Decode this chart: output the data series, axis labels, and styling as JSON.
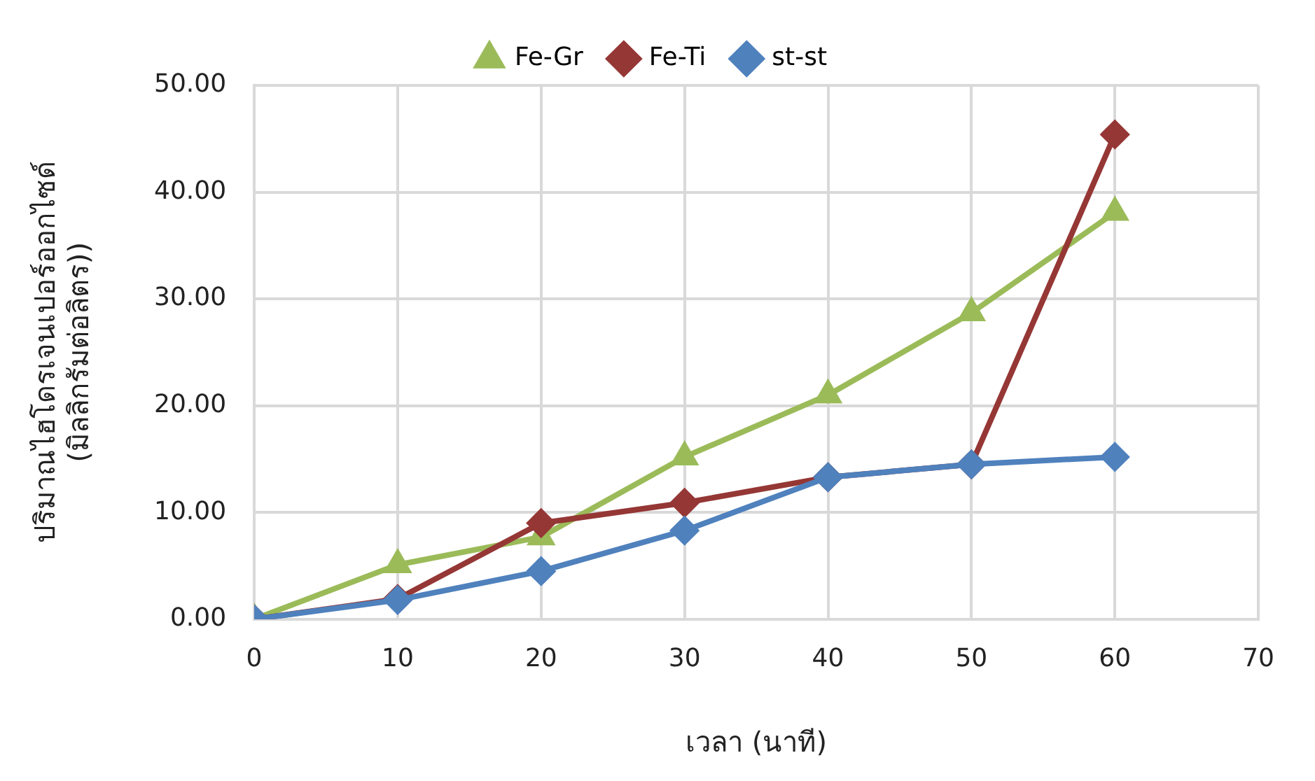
{
  "chart_data": {
    "type": "line",
    "xlabel": "เวลา (นาที)",
    "ylabel": "ปริมาณไฮโดรเจนเปอร์ออกไซด์\n(มิลลิกรัมต่อลิตร))",
    "x": [
      0,
      10,
      20,
      30,
      40,
      50,
      60
    ],
    "series": [
      {
        "name": "Fe-Gr",
        "color": "#9bbb59",
        "marker": "triangle",
        "values": [
          0,
          5.1,
          7.7,
          15.2,
          21.0,
          28.7,
          38.1
        ]
      },
      {
        "name": "Fe-Ti",
        "color": "#953735",
        "marker": "diamond",
        "values": [
          0,
          1.9,
          9.0,
          10.9,
          13.3,
          14.5,
          45.4
        ]
      },
      {
        "name": "st-st",
        "color": "#4f81bd",
        "marker": "diamond",
        "values": [
          0,
          1.8,
          4.5,
          8.3,
          13.3,
          14.5,
          15.2
        ]
      }
    ],
    "xlim": [
      0,
      70
    ],
    "xticks": [
      0,
      10,
      20,
      30,
      40,
      50,
      60,
      70
    ],
    "ylim": [
      0,
      50
    ],
    "yticks": [
      {
        "value": 0,
        "label": "0.00"
      },
      {
        "value": 10,
        "label": "10.00"
      },
      {
        "value": 20,
        "label": "20.00"
      },
      {
        "value": 30,
        "label": "30.00"
      },
      {
        "value": 40,
        "label": "40.00"
      },
      {
        "value": 50,
        "label": "50.00"
      }
    ],
    "grid": true,
    "legend": "top",
    "line_style": "solid"
  }
}
